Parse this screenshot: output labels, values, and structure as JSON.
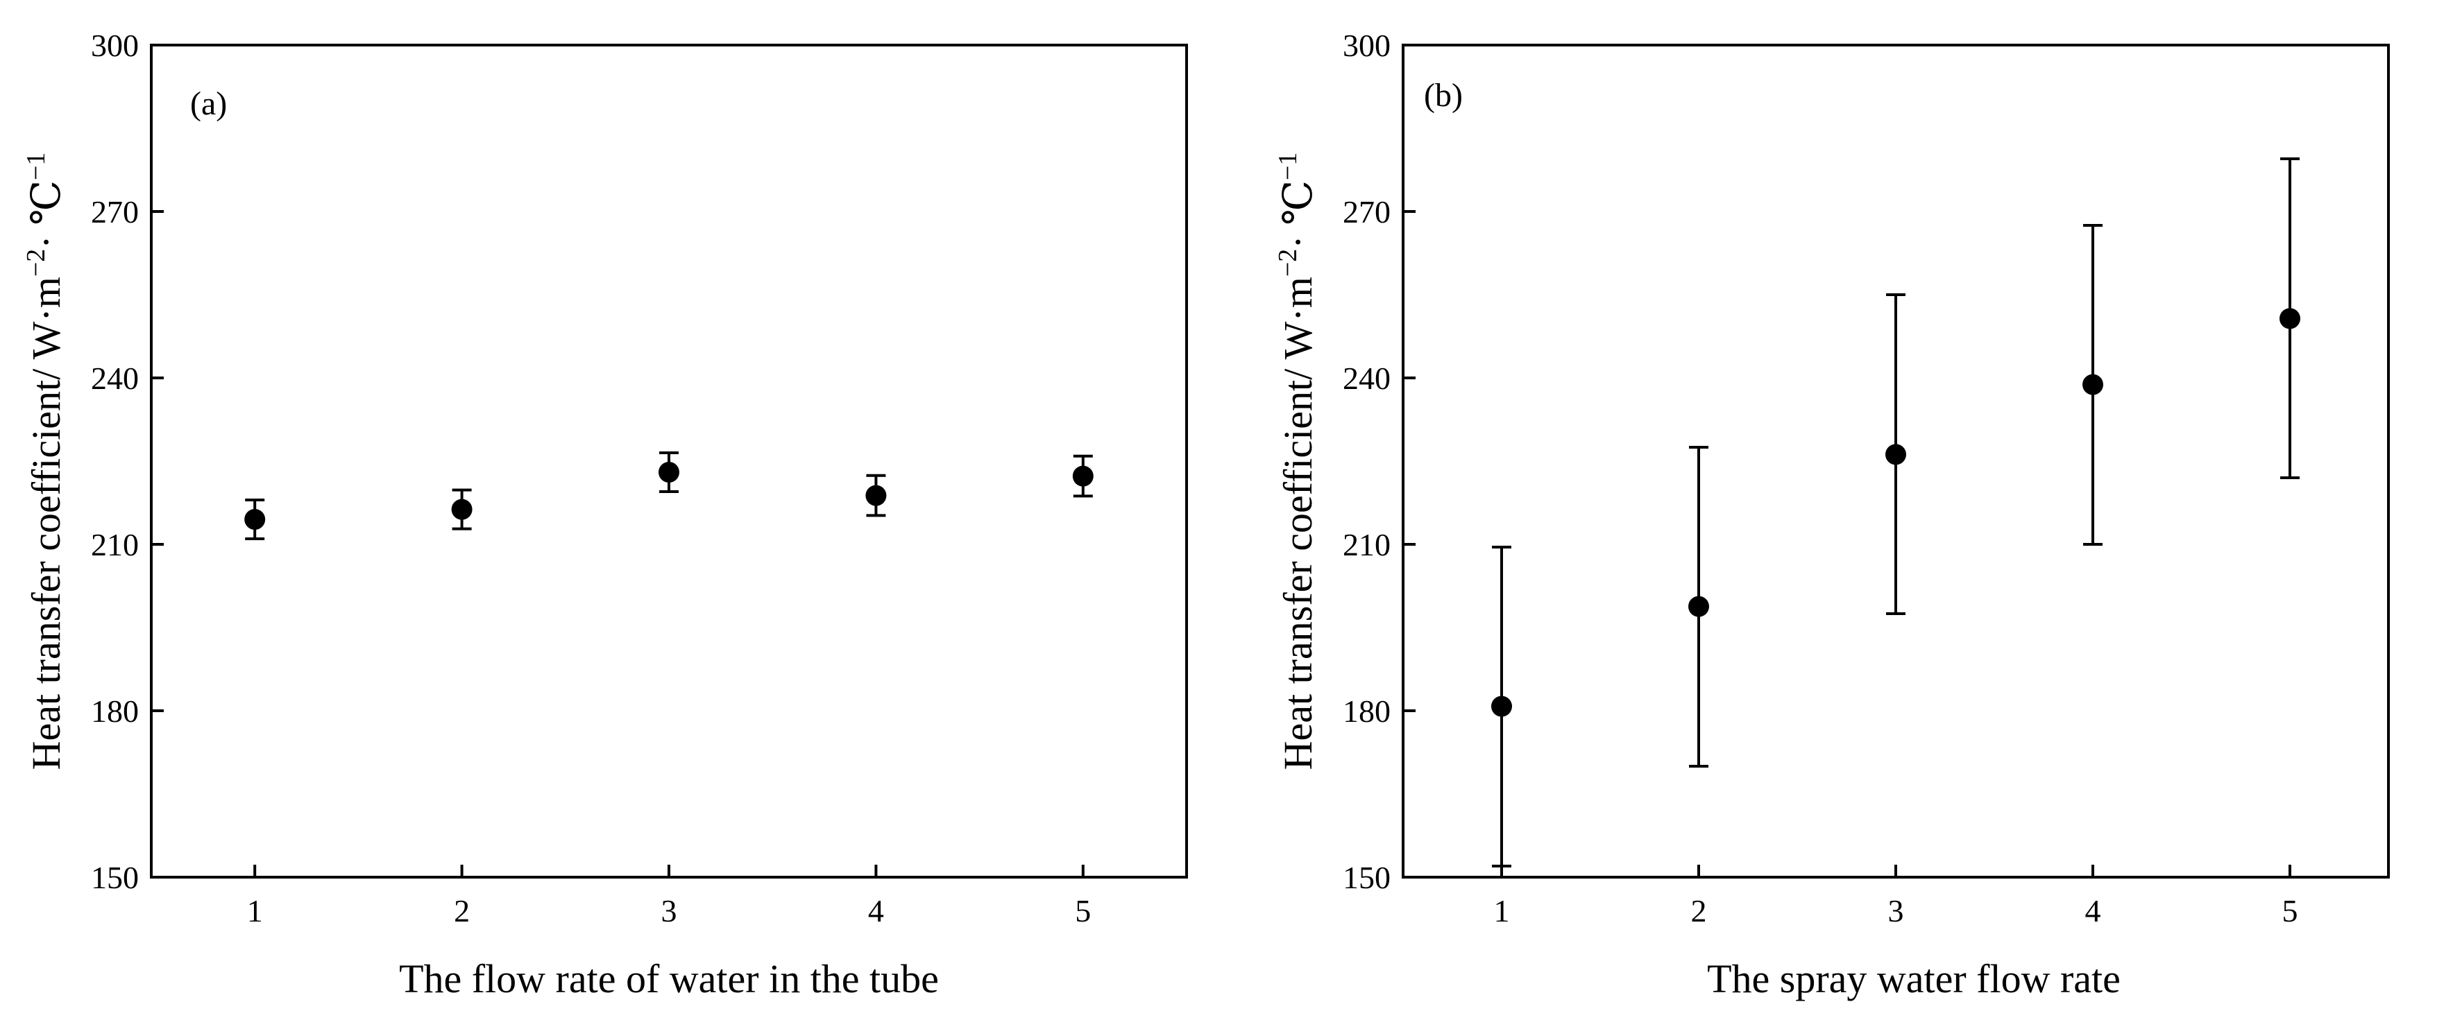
{
  "chart_data": [
    {
      "type": "scatter",
      "panel_label": "(a)",
      "xlabel": "The flow rate of water in the tube",
      "ylabel_main": "Heat transfer coefficient/ W·m",
      "ylabel_sup1": "−2",
      "ylabel_mid": "· ℃",
      "ylabel_sup2": "−1",
      "xlim": [
        0.5,
        5.5
      ],
      "ylim": [
        150,
        300
      ],
      "xticks": [
        1,
        2,
        3,
        4,
        5
      ],
      "yticks": [
        150,
        180,
        210,
        240,
        270,
        300
      ],
      "grid": false,
      "points": [
        {
          "x": 1,
          "y": 214.5,
          "err_low": 211.0,
          "err_high": 218.0
        },
        {
          "x": 2,
          "y": 216.3,
          "err_low": 212.8,
          "err_high": 219.8
        },
        {
          "x": 3,
          "y": 223.0,
          "err_low": 219.5,
          "err_high": 226.5
        },
        {
          "x": 4,
          "y": 218.8,
          "err_low": 215.2,
          "err_high": 222.4
        },
        {
          "x": 5,
          "y": 222.3,
          "err_low": 218.7,
          "err_high": 225.9
        }
      ]
    },
    {
      "type": "scatter",
      "panel_label": "(b)",
      "xlabel": "The spray water flow rate",
      "ylabel_main": "Heat transfer coefficient/ W·m",
      "ylabel_sup1": "−2",
      "ylabel_mid": "· ℃",
      "ylabel_sup2": "−1",
      "xlim": [
        0.5,
        5.5
      ],
      "ylim": [
        150,
        300
      ],
      "xticks": [
        1,
        2,
        3,
        4,
        5
      ],
      "yticks": [
        150,
        180,
        210,
        240,
        270,
        300
      ],
      "grid": false,
      "points": [
        {
          "x": 1,
          "y": 180.8,
          "err_low": 152.0,
          "err_high": 209.5
        },
        {
          "x": 2,
          "y": 198.8,
          "err_low": 170.0,
          "err_high": 227.5
        },
        {
          "x": 3,
          "y": 226.2,
          "err_low": 197.5,
          "err_high": 255.0
        },
        {
          "x": 4,
          "y": 238.8,
          "err_low": 210.0,
          "err_high": 267.5
        },
        {
          "x": 5,
          "y": 250.7,
          "err_low": 222.0,
          "err_high": 279.5
        }
      ]
    }
  ]
}
